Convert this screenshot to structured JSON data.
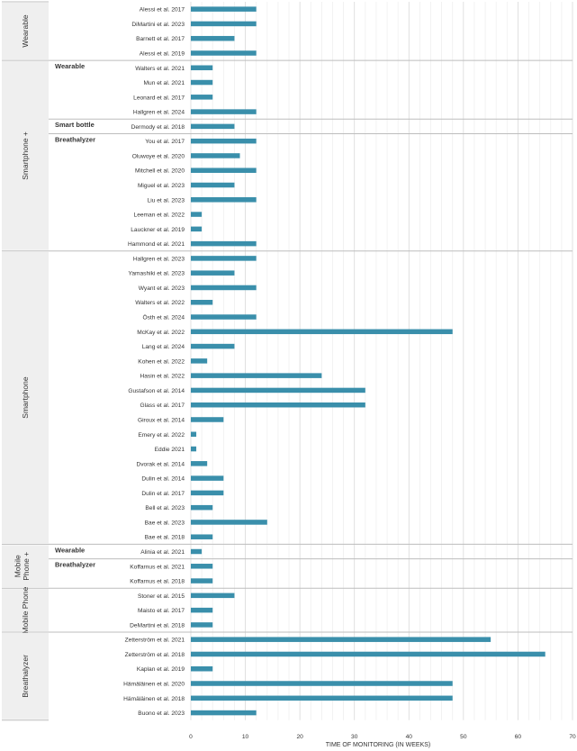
{
  "chart_data": {
    "type": "bar",
    "orientation": "horizontal",
    "xlabel": "TIME OF MONITORING (IN WEEKS)",
    "xlim": [
      0,
      70
    ],
    "xticks": [
      0,
      10,
      20,
      30,
      40,
      50,
      60,
      70
    ],
    "grid": true,
    "bar_color": "#3a8fab",
    "groups": [
      {
        "name": "Wearable",
        "subgroups": [
          {
            "name": "",
            "rows": [
              {
                "label": "Alessi et al. 2017",
                "value": 12
              },
              {
                "label": "DiMartini et al. 2023",
                "value": 12
              },
              {
                "label": "Barnett et al. 2017",
                "value": 8
              },
              {
                "label": "Alessi et al. 2019",
                "value": 12
              }
            ]
          }
        ]
      },
      {
        "name": "Smartphone +",
        "subgroups": [
          {
            "name": "Wearable",
            "rows": [
              {
                "label": "Walters et al. 2021",
                "value": 4
              },
              {
                "label": "Mun et al. 2021",
                "value": 4
              },
              {
                "label": "Leonard et al. 2017",
                "value": 4
              },
              {
                "label": "Hallgren et al. 2024",
                "value": 12
              }
            ]
          },
          {
            "name": "Smart bottle",
            "rows": [
              {
                "label": "Dermody et al. 2018",
                "value": 8
              }
            ]
          },
          {
            "name": "Breathalyzer",
            "rows": [
              {
                "label": "You et al. 2017",
                "value": 12
              },
              {
                "label": "Oluwoye et al. 2020",
                "value": 9
              },
              {
                "label": "Mitchell et al. 2020",
                "value": 12
              },
              {
                "label": "Miguel et al. 2023",
                "value": 8
              },
              {
                "label": "Liu et al. 2023",
                "value": 12
              },
              {
                "label": "Leeman et al. 2022",
                "value": 2
              },
              {
                "label": "Lauckner et al. 2019",
                "value": 2
              },
              {
                "label": "Hammond et al. 2021",
                "value": 12
              }
            ]
          }
        ]
      },
      {
        "name": "Smartphone",
        "subgroups": [
          {
            "name": "",
            "rows": [
              {
                "label": "Hallgren et al. 2023",
                "value": 12
              },
              {
                "label": "Yamashiki et al. 2023",
                "value": 8
              },
              {
                "label": "Wyant et al. 2023",
                "value": 12
              },
              {
                "label": "Walters et al.  2022",
                "value": 4
              },
              {
                "label": "Östh et al. 2024",
                "value": 12
              },
              {
                "label": "McKay et al. 2022",
                "value": 48
              },
              {
                "label": "Lang et al. 2024",
                "value": 8
              },
              {
                "label": "Kohen et al. 2022",
                "value": 3
              },
              {
                "label": "Hasin et al. 2022",
                "value": 24
              },
              {
                "label": "Gustafson et al. 2014",
                "value": 32
              },
              {
                "label": "Glass et al. 2017",
                "value": 32
              },
              {
                "label": "Giroux et al. 2014",
                "value": 6
              },
              {
                "label": "Emery et al. 2022",
                "value": 1
              },
              {
                "label": "Eddie 2021",
                "value": 1
              },
              {
                "label": "Dvorak et al. 2014",
                "value": 3
              },
              {
                "label": "Dulin et al. 2014",
                "value": 6
              },
              {
                "label": "Dulin et al. 2017",
                "value": 6
              },
              {
                "label": "Bell et al. 2023",
                "value": 4
              },
              {
                "label": "Bae et al. 2023",
                "value": 14
              },
              {
                "label": "Bae et al. 2018",
                "value": 4
              }
            ]
          }
        ]
      },
      {
        "name": "Mobile Phone +",
        "subgroups": [
          {
            "name": "Wearable",
            "rows": [
              {
                "label": "Alinia et al. 2021",
                "value": 2
              }
            ]
          },
          {
            "name": "Breathalyzer",
            "rows": [
              {
                "label": "Koffarnus et al. 2021",
                "value": 4
              },
              {
                "label": "Koffarnus et al. 2018",
                "value": 4
              }
            ]
          }
        ]
      },
      {
        "name": "Mobile Phone",
        "subgroups": [
          {
            "name": "",
            "rows": [
              {
                "label": "Stoner et al. 2015",
                "value": 8
              },
              {
                "label": "Maisto et al. 2017",
                "value": 4
              },
              {
                "label": "DeMartini et al. 2018",
                "value": 4
              }
            ]
          }
        ]
      },
      {
        "name": "Breathalyzer",
        "subgroups": [
          {
            "name": "",
            "rows": [
              {
                "label": "Zetterström et al. 2021",
                "value": 55
              },
              {
                "label": "Zetterström et al. 2018",
                "value": 65
              },
              {
                "label": "Kaplan et al. 2019",
                "value": 4
              },
              {
                "label": "Hämäläinen et al. 2020",
                "value": 48
              },
              {
                "label": "Hämäläinen et al. 2018",
                "value": 48
              },
              {
                "label": "Buono et al. 2023",
                "value": 12
              }
            ]
          }
        ]
      }
    ]
  }
}
